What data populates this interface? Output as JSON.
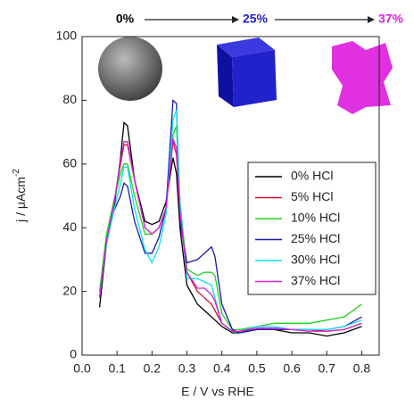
{
  "chart_data": {
    "type": "line",
    "x_label": "E  /  V vs RHE",
    "y_label": "j  /  μAcm",
    "y_label_sup": "-2",
    "annotations": [
      {
        "text": "0%",
        "color": "#000000"
      },
      {
        "text": "25%",
        "color": "#2020c8"
      },
      {
        "text": "37%",
        "color": "#e020e0"
      }
    ],
    "x": [
      0.05,
      0.07,
      0.09,
      0.11,
      0.12,
      0.13,
      0.15,
      0.18,
      0.2,
      0.22,
      0.24,
      0.26,
      0.27,
      0.28,
      0.3,
      0.33,
      0.35,
      0.37,
      0.38,
      0.4,
      0.43,
      0.45,
      0.5,
      0.55,
      0.6,
      0.65,
      0.7,
      0.75,
      0.8
    ],
    "series": [
      {
        "name": "0% HCl",
        "color": "#000000",
        "values": [
          15,
          35,
          45,
          62,
          73,
          72,
          55,
          42,
          41,
          42,
          48,
          62,
          57,
          40,
          22,
          16,
          14,
          12,
          11,
          9,
          7,
          7,
          8,
          8,
          7,
          7,
          6,
          7,
          9
        ]
      },
      {
        "name": "5% HCl",
        "color": "#d01030",
        "values": [
          18,
          36,
          47,
          60,
          66,
          66,
          55,
          40,
          38,
          40,
          46,
          67,
          63,
          44,
          26,
          20,
          18,
          16,
          14,
          10,
          7.5,
          7.5,
          8,
          8,
          8,
          8,
          7.5,
          8,
          10
        ]
      },
      {
        "name": "10% HCl",
        "color": "#20d020",
        "values": [
          20,
          38,
          48,
          57,
          60,
          60,
          50,
          38,
          38,
          40,
          46,
          69,
          72,
          48,
          27,
          25,
          26,
          26,
          25,
          13,
          8,
          8,
          9,
          10,
          10,
          10,
          11,
          12,
          16
        ]
      },
      {
        "name": "25% HCl",
        "color": "#1a1aa8",
        "values": [
          18,
          36,
          45,
          50,
          54,
          53,
          42,
          32,
          32,
          37,
          46,
          80,
          79,
          42,
          29,
          30,
          32,
          34,
          31,
          16,
          8,
          7,
          8,
          8,
          8,
          8,
          8,
          9,
          12
        ]
      },
      {
        "name": "30% HCl",
        "color": "#10e0f0",
        "values": [
          18,
          35,
          45,
          54,
          59,
          59,
          46,
          33,
          29,
          34,
          44,
          74,
          77,
          48,
          24,
          24,
          23,
          22,
          18,
          10,
          7.5,
          7.5,
          9,
          9,
          8,
          8,
          8,
          9,
          11
        ]
      },
      {
        "name": "37% HCl",
        "color": "#d020d0",
        "values": [
          18,
          36,
          47,
          61,
          67,
          67,
          55,
          40,
          38,
          40,
          46,
          68,
          65,
          45,
          26,
          21,
          21,
          19,
          17,
          10,
          7.5,
          7.5,
          8.5,
          8.5,
          8,
          7.5,
          7.5,
          8,
          10
        ]
      }
    ],
    "xlim": [
      0,
      0.85
    ],
    "ylim": [
      0,
      100
    ],
    "xticks": [
      {
        "value": 0,
        "label": "0.0"
      },
      0.1,
      0.2,
      0.3,
      0.4,
      0.5,
      0.6,
      0.7,
      0.8
    ],
    "yticks": [
      0,
      20,
      40,
      60,
      80,
      100
    ],
    "legend": "right"
  }
}
